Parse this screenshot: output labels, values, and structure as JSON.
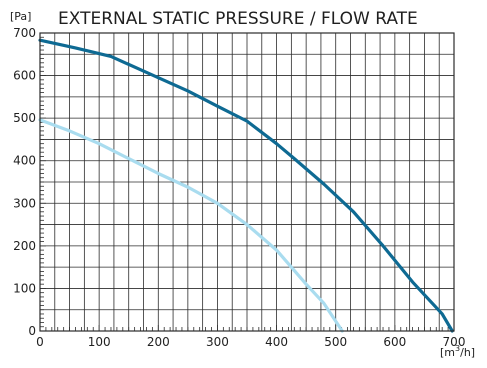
{
  "chart_data": {
    "type": "line",
    "title": "EXTERNAL STATIC PRESSURE / FLOW RATE",
    "ylabel": "[Pa]",
    "xlabel_prefix": "[m",
    "xlabel_exponent": "3",
    "xlabel_suffix": "/h]",
    "xlim": [
      0,
      700
    ],
    "ylim": [
      0,
      700
    ],
    "x_ticks": [
      "0",
      "100",
      "200",
      "300",
      "400",
      "500",
      "600",
      "700"
    ],
    "y_ticks": [
      "0",
      "100",
      "200",
      "300",
      "400",
      "500",
      "600",
      "700"
    ],
    "x_tick_values": [
      0,
      100,
      200,
      300,
      400,
      500,
      600,
      700
    ],
    "y_tick_values": [
      0,
      100,
      200,
      300,
      400,
      500,
      600,
      700
    ],
    "grid": true,
    "legend": "none",
    "series": [
      {
        "color": "#0e6a93",
        "points": [
          [
            0,
            683
          ],
          [
            60,
            665
          ],
          [
            120,
            645
          ],
          [
            200,
            595
          ],
          [
            250,
            564
          ],
          [
            300,
            528
          ],
          [
            350,
            493
          ],
          [
            400,
            440
          ],
          [
            430,
            405
          ],
          [
            480,
            345
          ],
          [
            530,
            280
          ],
          [
            580,
            200
          ],
          [
            630,
            115
          ],
          [
            680,
            40
          ],
          [
            697,
            0
          ]
        ]
      },
      {
        "color": "#a9dcef",
        "points": [
          [
            0,
            496
          ],
          [
            50,
            470
          ],
          [
            100,
            440
          ],
          [
            150,
            405
          ],
          [
            200,
            370
          ],
          [
            250,
            338
          ],
          [
            300,
            300
          ],
          [
            350,
            250
          ],
          [
            400,
            190
          ],
          [
            450,
            110
          ],
          [
            480,
            65
          ],
          [
            511,
            0
          ]
        ]
      }
    ]
  }
}
